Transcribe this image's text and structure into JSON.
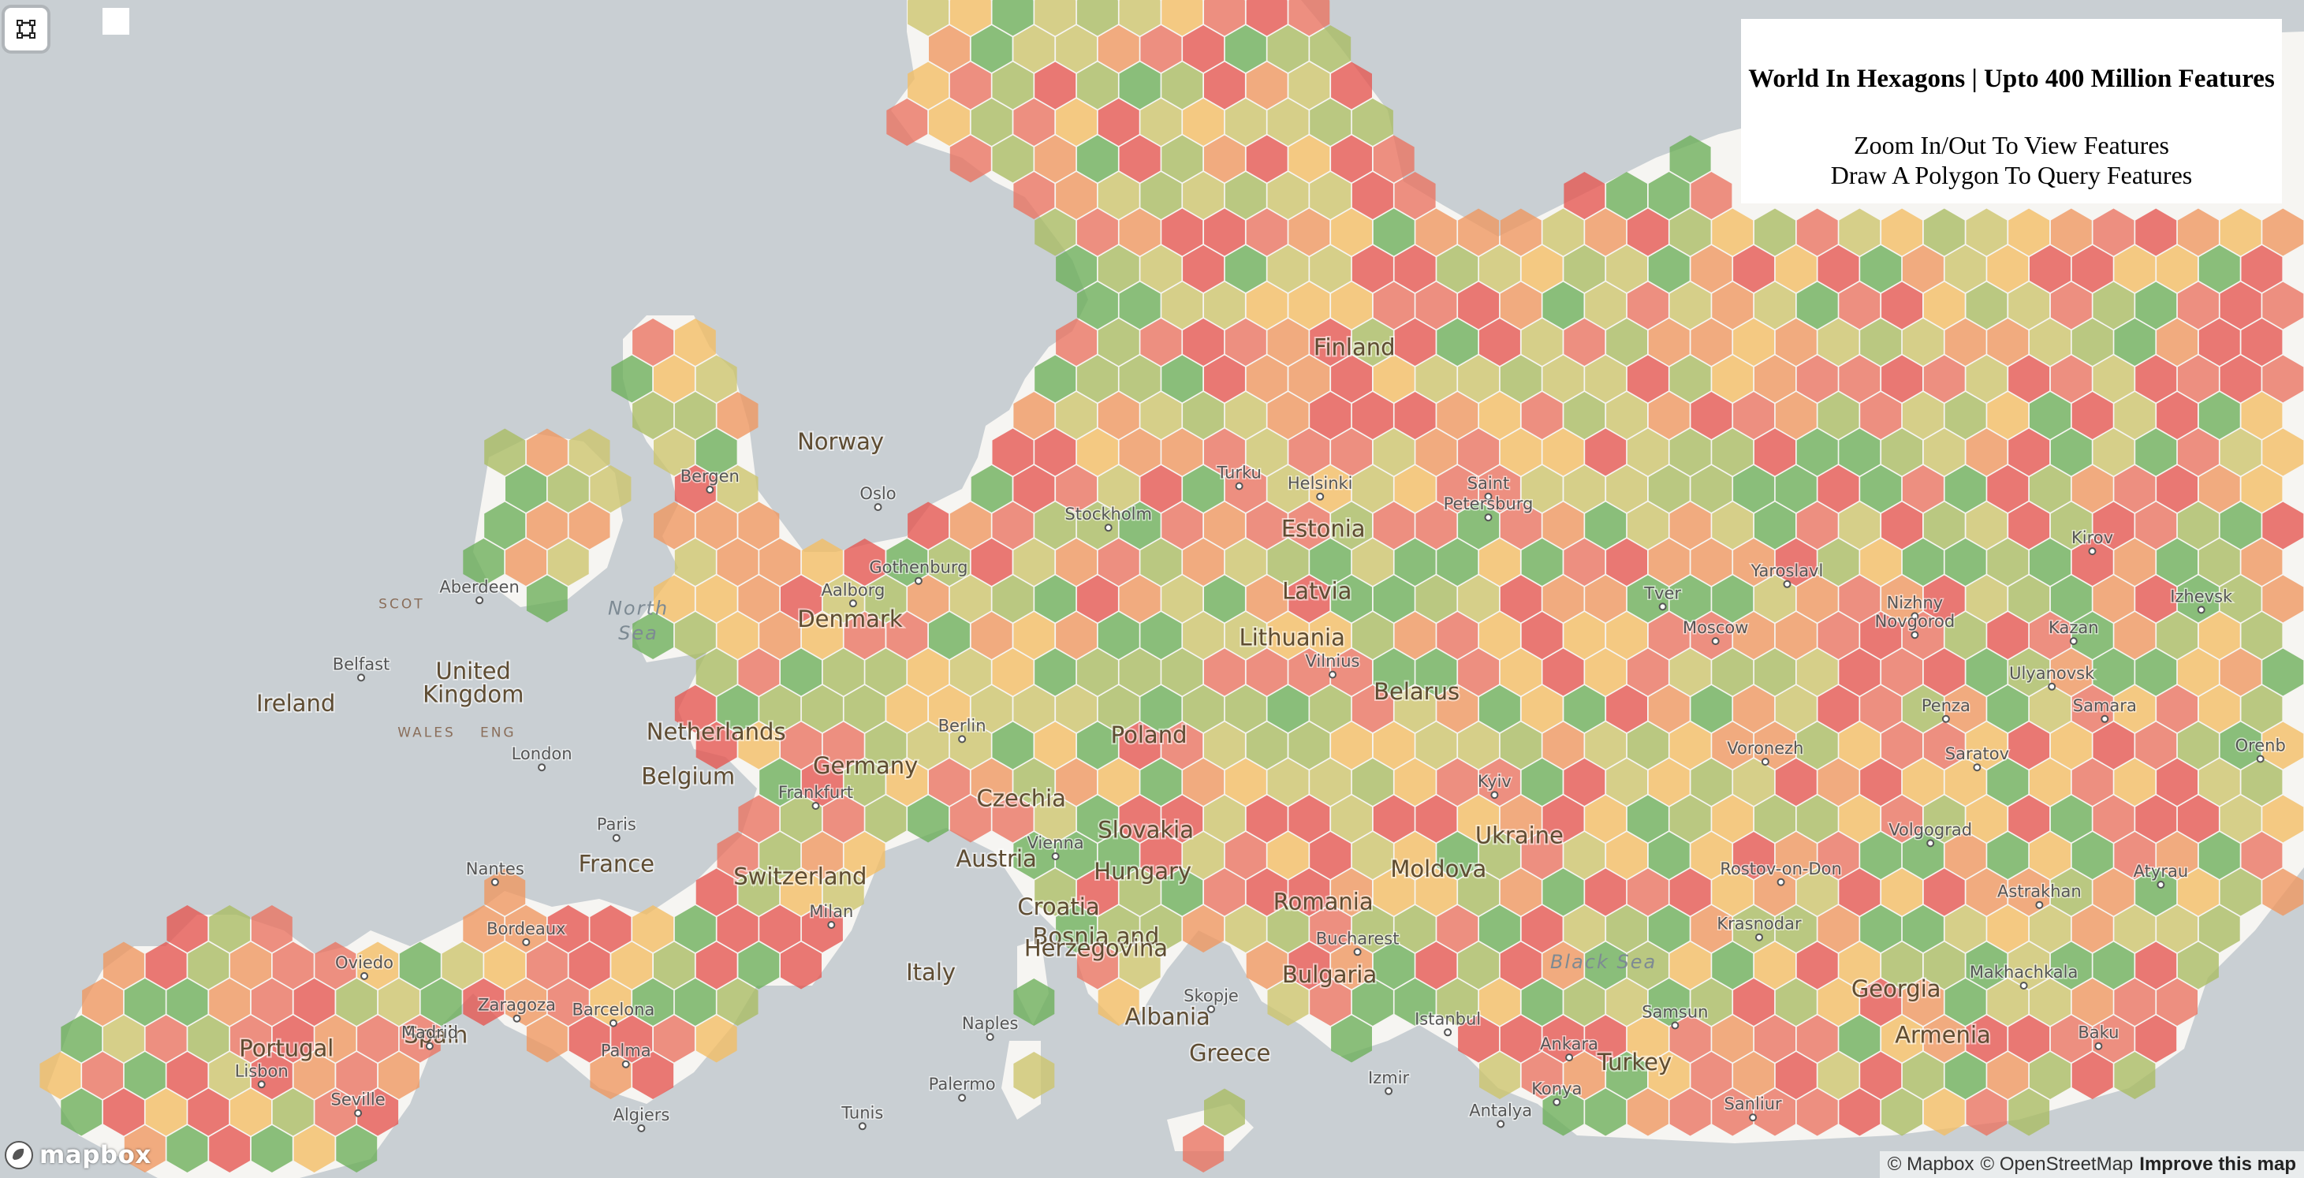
{
  "panel": {
    "title": "World In Hexagons | Upto 400 Million Features",
    "line1": "Zoom In/Out To View Features",
    "line2": "Draw A Polygon To Query Features"
  },
  "controls": {
    "draw_polygon_icon": "polygon-draw-icon",
    "toggle_icon": "square-icon"
  },
  "attribution": {
    "mapbox": "© Mapbox",
    "osm": "© OpenStreetMap",
    "improve": "Improve this map"
  },
  "logo": {
    "text": "mapbox",
    "icon": "mapbox-logo-icon"
  },
  "colors": {
    "water": "#c9cfd3",
    "land": "#f6f5f2",
    "hex_palette": [
      "#e5544f",
      "#ea7260",
      "#f0965f",
      "#f3bd63",
      "#cdc46c",
      "#a9bb62",
      "#6cae58"
    ]
  },
  "hexes": {
    "count_hint": "dense coverage of European landmass",
    "opacity": 0.78
  },
  "labels": {
    "countries": [
      {
        "text": "Finland",
        "lon": 26.0,
        "lat": 63.8
      },
      {
        "text": "Norway",
        "lon": 9.5,
        "lat": 61.3
      },
      {
        "text": "Estonia",
        "lon": 25.0,
        "lat": 58.8
      },
      {
        "text": "Latvia",
        "lon": 24.8,
        "lat": 56.9
      },
      {
        "text": "Lithuania",
        "lon": 24.0,
        "lat": 55.4
      },
      {
        "text": "Denmark",
        "lon": 9.8,
        "lat": 56.0
      },
      {
        "text": "United",
        "lon": -2.3,
        "lat": 54.3
      },
      {
        "text": "Kingdom",
        "lon": -2.3,
        "lat": 53.5
      },
      {
        "text": "Ireland",
        "lon": -8.0,
        "lat": 53.2
      },
      {
        "text": "Belarus",
        "lon": 28.0,
        "lat": 53.6
      },
      {
        "text": "Poland",
        "lon": 19.4,
        "lat": 52.1
      },
      {
        "text": "Netherlands",
        "lon": 5.5,
        "lat": 52.2
      },
      {
        "text": "Belgium",
        "lon": 4.6,
        "lat": 50.6
      },
      {
        "text": "Germany",
        "lon": 10.3,
        "lat": 51.0
      },
      {
        "text": "Czechia",
        "lon": 15.3,
        "lat": 49.8
      },
      {
        "text": "Slovakia",
        "lon": 19.3,
        "lat": 48.6
      },
      {
        "text": "Ukraine",
        "lon": 31.3,
        "lat": 48.4
      },
      {
        "text": "Austria",
        "lon": 14.5,
        "lat": 47.5
      },
      {
        "text": "Hungary",
        "lon": 19.2,
        "lat": 47.0
      },
      {
        "text": "Moldova",
        "lon": 28.7,
        "lat": 47.1
      },
      {
        "text": "France",
        "lon": 2.3,
        "lat": 47.3
      },
      {
        "text": "Switzerland",
        "lon": 8.2,
        "lat": 46.8
      },
      {
        "text": "Romania",
        "lon": 25.0,
        "lat": 45.8
      },
      {
        "text": "Croatia",
        "lon": 16.5,
        "lat": 45.6
      },
      {
        "text": "Bosnia and",
        "lon": 17.7,
        "lat": 44.4
      },
      {
        "text": "Herzegovina",
        "lon": 17.7,
        "lat": 43.9
      },
      {
        "text": "Bulgaria",
        "lon": 25.2,
        "lat": 42.8
      },
      {
        "text": "Italy",
        "lon": 12.4,
        "lat": 42.9
      },
      {
        "text": "Spain",
        "lon": -3.5,
        "lat": 40.2
      },
      {
        "text": "Portugal",
        "lon": -8.3,
        "lat": 39.6
      },
      {
        "text": "Georgia",
        "lon": 43.4,
        "lat": 42.2
      },
      {
        "text": "Armenia",
        "lon": 44.9,
        "lat": 40.2
      },
      {
        "text": "Greece",
        "lon": 22.0,
        "lat": 39.4
      },
      {
        "text": "Turkey",
        "lon": 35.0,
        "lat": 39.0
      },
      {
        "text": "Albania",
        "lon": 20.0,
        "lat": 41.0
      }
    ],
    "cities": [
      {
        "text": "Bergen",
        "lon": 5.3,
        "lat": 60.4
      },
      {
        "text": "Oslo",
        "lon": 10.7,
        "lat": 59.9
      },
      {
        "text": "Stockholm",
        "lon": 18.1,
        "lat": 59.3
      },
      {
        "text": "Turku",
        "lon": 22.3,
        "lat": 60.5
      },
      {
        "text": "Helsinki",
        "lon": 24.9,
        "lat": 60.2
      },
      {
        "text": "Saint",
        "lon": 30.3,
        "lat": 60.2
      },
      {
        "text": "Petersburg",
        "lon": 30.3,
        "lat": 59.6
      },
      {
        "text": "Gothenburg",
        "lon": 12.0,
        "lat": 57.7
      },
      {
        "text": "Aalborg",
        "lon": 9.9,
        "lat": 57.0
      },
      {
        "text": "Aberdeen",
        "lon": -2.1,
        "lat": 57.1
      },
      {
        "text": "Belfast",
        "lon": -5.9,
        "lat": 54.6
      },
      {
        "text": "London",
        "lon": -0.1,
        "lat": 51.5
      },
      {
        "text": "Berlin",
        "lon": 13.4,
        "lat": 52.5
      },
      {
        "text": "Vilnius",
        "lon": 25.3,
        "lat": 54.7
      },
      {
        "text": "Frankfurt",
        "lon": 8.7,
        "lat": 50.1
      },
      {
        "text": "Paris",
        "lon": 2.3,
        "lat": 48.9
      },
      {
        "text": "Vienna",
        "lon": 16.4,
        "lat": 48.2
      },
      {
        "text": "Kyiv",
        "lon": 30.5,
        "lat": 50.5
      },
      {
        "text": "Nantes",
        "lon": -1.6,
        "lat": 47.2
      },
      {
        "text": "Milan",
        "lon": 9.2,
        "lat": 45.5
      },
      {
        "text": "Bordeaux",
        "lon": -0.6,
        "lat": 44.8
      },
      {
        "text": "Bucharest",
        "lon": 26.1,
        "lat": 44.4
      },
      {
        "text": "Rostov-on-Don",
        "lon": 39.7,
        "lat": 47.2
      },
      {
        "text": "Krasnodar",
        "lon": 39.0,
        "lat": 45.0
      },
      {
        "text": "Oviedo",
        "lon": -5.8,
        "lat": 43.4
      },
      {
        "text": "Zaragoza",
        "lon": -0.9,
        "lat": 41.6
      },
      {
        "text": "Barcelona",
        "lon": 2.2,
        "lat": 41.4
      },
      {
        "text": "Madrid",
        "lon": -3.7,
        "lat": 40.4
      },
      {
        "text": "Skopje",
        "lon": 21.4,
        "lat": 42.0
      },
      {
        "text": "Istanbul",
        "lon": 29.0,
        "lat": 41.0
      },
      {
        "text": "Samsun",
        "lon": 36.3,
        "lat": 41.3
      },
      {
        "text": "Ankara",
        "lon": 32.9,
        "lat": 39.9
      },
      {
        "text": "Naples",
        "lon": 14.3,
        "lat": 40.8
      },
      {
        "text": "Palma",
        "lon": 2.6,
        "lat": 39.6
      },
      {
        "text": "Lisbon",
        "lon": -9.1,
        "lat": 38.7
      },
      {
        "text": "Seville",
        "lon": -6.0,
        "lat": 37.4
      },
      {
        "text": "Palermo",
        "lon": 13.4,
        "lat": 38.1
      },
      {
        "text": "Algiers",
        "lon": 3.1,
        "lat": 36.7
      },
      {
        "text": "Tunis",
        "lon": 10.2,
        "lat": 36.8
      },
      {
        "text": "Izmir",
        "lon": 27.1,
        "lat": 38.4
      },
      {
        "text": "Konya",
        "lon": 32.5,
        "lat": 37.9
      },
      {
        "text": "Antalya",
        "lon": 30.7,
        "lat": 36.9
      },
      {
        "text": "Sanliur",
        "lon": 38.8,
        "lat": 37.2
      },
      {
        "text": "Makhachkala",
        "lon": 47.5,
        "lat": 43.0
      },
      {
        "text": "Baku",
        "lon": 49.9,
        "lat": 40.4
      },
      {
        "text": "Moscow",
        "lon": 37.6,
        "lat": 55.8
      },
      {
        "text": "Tver",
        "lon": 35.9,
        "lat": 56.9
      },
      {
        "text": "Yaroslavl",
        "lon": 39.9,
        "lat": 57.6
      },
      {
        "text": "Kirov",
        "lon": 49.7,
        "lat": 58.6
      },
      {
        "text": "Izhevsk",
        "lon": 53.2,
        "lat": 56.8
      },
      {
        "text": "Nizhny",
        "lon": 44.0,
        "lat": 56.6
      },
      {
        "text": "Novgorod",
        "lon": 44.0,
        "lat": 56.0
      },
      {
        "text": "Kazan",
        "lon": 49.1,
        "lat": 55.8
      },
      {
        "text": "Ulyanovsk",
        "lon": 48.4,
        "lat": 54.3
      },
      {
        "text": "Penza",
        "lon": 45.0,
        "lat": 53.2
      },
      {
        "text": "Samara",
        "lon": 50.1,
        "lat": 53.2
      },
      {
        "text": "Voronezh",
        "lon": 39.2,
        "lat": 51.7
      },
      {
        "text": "Saratov",
        "lon": 46.0,
        "lat": 51.5
      },
      {
        "text": "Orenb",
        "lon": 55.1,
        "lat": 51.8
      },
      {
        "text": "Volgograd",
        "lon": 44.5,
        "lat": 48.7
      },
      {
        "text": "Astrakhan",
        "lon": 48.0,
        "lat": 46.3
      },
      {
        "text": "Atyrau",
        "lon": 51.9,
        "lat": 47.1
      }
    ],
    "seas": [
      {
        "text": "North",
        "lon": 3.0,
        "lat": 56.4
      },
      {
        "text": "Sea",
        "lon": 3.0,
        "lat": 55.6
      },
      {
        "text": "Black Sea",
        "lon": 34.0,
        "lat": 43.4
      }
    ],
    "regions": [
      {
        "text": "SCOT",
        "lon": -4.6,
        "lat": 56.6
      },
      {
        "text": "WALES",
        "lon": -3.8,
        "lat": 52.3
      },
      {
        "text": "ENG",
        "lon": -1.5,
        "lat": 52.3
      }
    ]
  }
}
